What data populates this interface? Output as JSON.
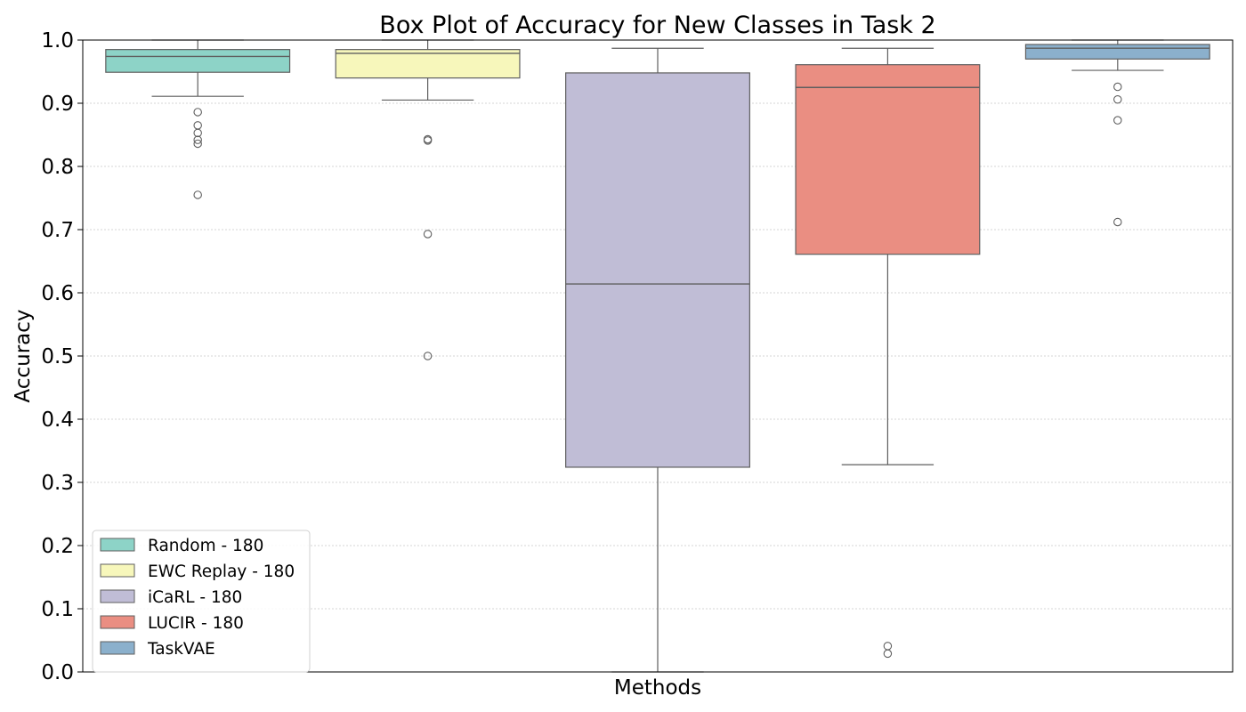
{
  "chart_data": {
    "type": "box",
    "title": "Box Plot of Accuracy for New Classes in Task 2",
    "xlabel": "Methods",
    "ylabel": "Accuracy",
    "ylim": [
      0.0,
      1.0
    ],
    "yticks": [
      "0.0",
      "0.1",
      "0.2",
      "0.3",
      "0.4",
      "0.5",
      "0.6",
      "0.7",
      "0.8",
      "0.9",
      "1.0"
    ],
    "grid": "horizontal dotted",
    "legend_position": "bottom-left",
    "series": [
      {
        "name": "Random - 180",
        "color": "#8dd3c7",
        "q1": 0.949,
        "median": 0.974,
        "q3": 0.985,
        "whisker_low": 0.911,
        "whisker_high": 1.0,
        "outliers": [
          0.886,
          0.865,
          0.853,
          0.842,
          0.836,
          0.755
        ]
      },
      {
        "name": "EWC Replay - 180",
        "color": "#f7f7bb",
        "q1": 0.94,
        "median": 0.979,
        "q3": 0.985,
        "whisker_low": 0.905,
        "whisker_high": 1.0,
        "outliers": [
          0.843,
          0.841,
          0.693,
          0.5
        ]
      },
      {
        "name": "iCaRL - 180",
        "color": "#c0bdd6",
        "q1": 0.324,
        "median": 0.614,
        "q3": 0.948,
        "whisker_low": 0.0,
        "whisker_high": 0.987,
        "outliers": []
      },
      {
        "name": "LUCIR - 180",
        "color": "#ea8e82",
        "q1": 0.661,
        "median": 0.925,
        "q3": 0.961,
        "whisker_low": 0.328,
        "whisker_high": 0.987,
        "outliers": [
          0.041,
          0.029
        ]
      },
      {
        "name": "TaskVAE",
        "color": "#8bb0cc",
        "q1": 0.97,
        "median": 0.987,
        "q3": 0.993,
        "whisker_low": 0.952,
        "whisker_high": 1.0,
        "outliers": [
          0.926,
          0.906,
          0.873,
          0.712
        ]
      }
    ]
  }
}
